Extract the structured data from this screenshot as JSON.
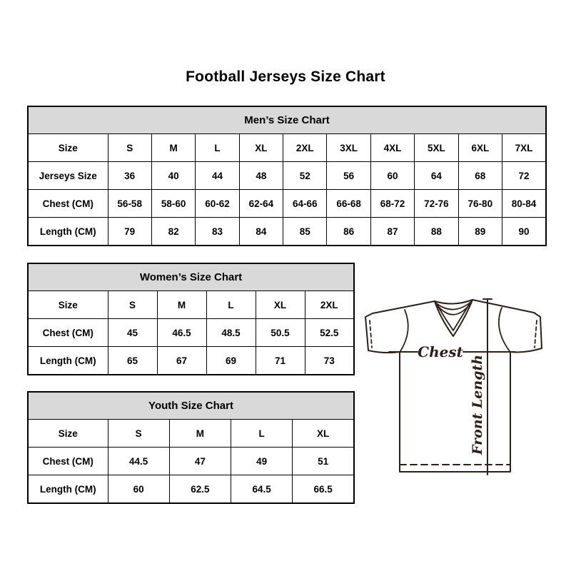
{
  "page": {
    "title": "Football Jerseys Size Chart",
    "background": "#ffffff"
  },
  "colors": {
    "header_band_bg": "#d9d9d9",
    "border": "#000000",
    "text": "#000000",
    "diagram_line": "#2b2118"
  },
  "tables": {
    "mens": {
      "title": "Men’s Size Chart",
      "rows": [
        [
          "Size",
          "S",
          "M",
          "L",
          "XL",
          "2XL",
          "3XL",
          "4XL",
          "5XL",
          "6XL",
          "7XL"
        ],
        [
          "Jerseys Size",
          "36",
          "40",
          "44",
          "48",
          "52",
          "56",
          "60",
          "64",
          "68",
          "72"
        ],
        [
          "Chest (CM)",
          "56-58",
          "58-60",
          "60-62",
          "62-64",
          "64-66",
          "66-68",
          "68-72",
          "72-76",
          "76-80",
          "80-84"
        ],
        [
          "Length (CM)",
          "79",
          "82",
          "83",
          "84",
          "85",
          "86",
          "87",
          "88",
          "89",
          "90"
        ]
      ]
    },
    "womens": {
      "title": "Women’s Size Chart",
      "rows": [
        [
          "Size",
          "S",
          "M",
          "L",
          "XL",
          "2XL"
        ],
        [
          "Chest (CM)",
          "45",
          "46.5",
          "48.5",
          "50.5",
          "52.5"
        ],
        [
          "Length (CM)",
          "65",
          "67",
          "69",
          "71",
          "73"
        ]
      ]
    },
    "youth": {
      "title": "Youth Size Chart",
      "rows": [
        [
          "Size",
          "S",
          "M",
          "L",
          "XL"
        ],
        [
          "Chest (CM)",
          "44.5",
          "47",
          "49",
          "51"
        ],
        [
          "Length (CM)",
          "60",
          "62.5",
          "64.5",
          "66.5"
        ]
      ]
    }
  },
  "diagram": {
    "chest_label": "Chest",
    "front_length_label": "Front Length"
  }
}
